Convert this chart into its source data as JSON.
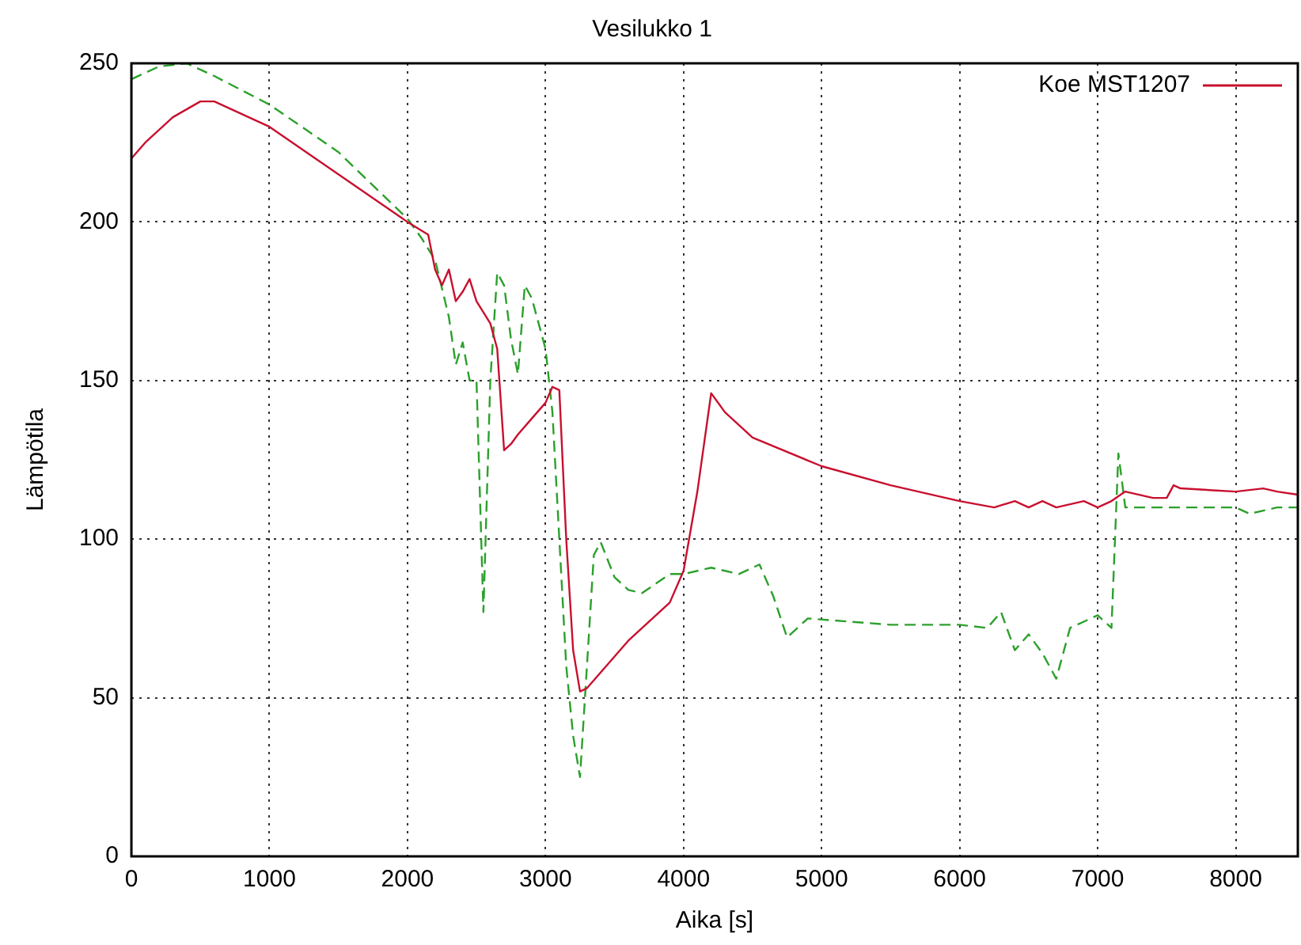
{
  "chart_data": {
    "type": "line",
    "title": "Vesilukko 1",
    "xlabel": "Aika [s]",
    "ylabel": "Lämpötila",
    "xlim": [
      0,
      8450
    ],
    "xticks": [
      0,
      1000,
      2000,
      3000,
      4000,
      5000,
      6000,
      7000,
      8000
    ],
    "ylim": [
      0,
      250
    ],
    "yticks": [
      0,
      50,
      100,
      150,
      200,
      250
    ],
    "grid": true,
    "legend": "top right",
    "marker": "none",
    "series": [
      {
        "name": "Koe MST1207",
        "color": "#c8102e",
        "line_style": "solid",
        "x": [
          0,
          100,
          300,
          500,
          600,
          700,
          1000,
          2000,
          2150,
          2200,
          2250,
          2300,
          2350,
          2400,
          2450,
          2500,
          2600,
          2650,
          2700,
          2750,
          2800,
          2900,
          3000,
          3050,
          3100,
          3150,
          3200,
          3250,
          3300,
          3400,
          3500,
          3600,
          3800,
          3900,
          4000,
          4100,
          4200,
          4300,
          4500,
          5000,
          5500,
          6000,
          6250,
          6400,
          6500,
          6600,
          6700,
          6900,
          7000,
          7100,
          7200,
          7400,
          7500,
          7550,
          7600,
          8000,
          8200,
          8300,
          8450
        ],
        "values": [
          220,
          225,
          233,
          238,
          238,
          236,
          230,
          200,
          196,
          185,
          180,
          185,
          175,
          178,
          182,
          175,
          168,
          160,
          128,
          130,
          133,
          138,
          143,
          148,
          147,
          100,
          65,
          52,
          53,
          58,
          63,
          68,
          76,
          80,
          90,
          115,
          146,
          140,
          132,
          123,
          117,
          112,
          110,
          112,
          110,
          112,
          110,
          112,
          110,
          112,
          115,
          113,
          113,
          117,
          116,
          115,
          116,
          115,
          114
        ]
      },
      {
        "color": "#2ca02c",
        "line_style": "dashed",
        "x": [
          0,
          200,
          400,
          600,
          1000,
          1500,
          2000,
          2100,
          2200,
          2300,
          2350,
          2400,
          2450,
          2500,
          2550,
          2600,
          2650,
          2700,
          2750,
          2800,
          2850,
          2900,
          2950,
          3000,
          3050,
          3100,
          3150,
          3200,
          3250,
          3300,
          3350,
          3400,
          3500,
          3600,
          3700,
          3800,
          3900,
          4000,
          4200,
          4400,
          4550,
          4650,
          4750,
          4900,
          5500,
          6000,
          6200,
          6300,
          6400,
          6500,
          6600,
          6700,
          6800,
          7000,
          7100,
          7150,
          7200,
          7500,
          8000,
          8100,
          8300,
          8450
        ],
        "values": [
          245,
          249,
          250,
          246,
          237,
          222,
          201,
          195,
          188,
          170,
          155,
          162,
          150,
          150,
          77,
          150,
          184,
          180,
          163,
          152,
          180,
          176,
          168,
          160,
          140,
          100,
          60,
          38,
          25,
          60,
          95,
          99,
          88,
          84,
          83,
          86,
          89,
          89,
          91,
          89,
          92,
          82,
          69,
          75,
          73,
          73,
          72,
          77,
          65,
          70,
          64,
          56,
          72,
          76,
          72,
          127,
          110,
          110,
          110,
          108,
          110,
          110
        ]
      }
    ]
  }
}
